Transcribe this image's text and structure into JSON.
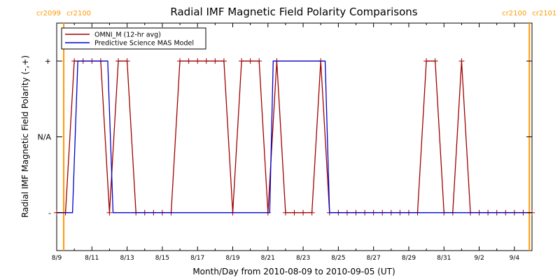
{
  "chart_data": {
    "type": "line",
    "title": "Radial IMF Magnetic Field Polarity Comparisons",
    "xlabel": "Month/Day from 2010-08-09 to 2010-09-05 (UT)",
    "ylabel": "Radial IMF Magnetic Field Polarity (-,+)",
    "x_unit": "days from 2010-08-09",
    "xlim": [
      0,
      27
    ],
    "ylim": [
      -1.5,
      1.5
    ],
    "x_ticks": [
      {
        "x": 0,
        "label": "8/9"
      },
      {
        "x": 2,
        "label": "8/11"
      },
      {
        "x": 4,
        "label": "8/13"
      },
      {
        "x": 6,
        "label": "8/15"
      },
      {
        "x": 8,
        "label": "8/17"
      },
      {
        "x": 10,
        "label": "8/19"
      },
      {
        "x": 12,
        "label": "8/21"
      },
      {
        "x": 14,
        "label": "8/23"
      },
      {
        "x": 16,
        "label": "8/25"
      },
      {
        "x": 18,
        "label": "8/27"
      },
      {
        "x": 20,
        "label": "8/29"
      },
      {
        "x": 22,
        "label": "8/31"
      },
      {
        "x": 24,
        "label": "9/2"
      },
      {
        "x": 26,
        "label": "9/4"
      }
    ],
    "y_ticks": [
      {
        "y": 1,
        "label": "+"
      },
      {
        "y": 0,
        "label": "N/A"
      },
      {
        "y": -1,
        "label": "-"
      }
    ],
    "carrington_markers": [
      {
        "x": 0.4,
        "label_left": "cr2099",
        "label_right": "cr2100",
        "color": "#ff9900"
      },
      {
        "x": 26.85,
        "label_left": "cr2100",
        "label_right": "cr2101",
        "color": "#ff9900"
      }
    ],
    "legend": "top-left",
    "series": [
      {
        "name": "OMNI_M (12-hr avg)",
        "color": "#a00000",
        "markers": "plus",
        "points": [
          [
            0,
            -1
          ],
          [
            0.5,
            -1
          ],
          [
            1,
            1
          ],
          [
            1.5,
            1
          ],
          [
            2,
            1
          ],
          [
            2.5,
            1
          ],
          [
            3,
            -1
          ],
          [
            3.5,
            1
          ],
          [
            4,
            1
          ],
          [
            4.5,
            -1
          ],
          [
            5,
            -1
          ],
          [
            5.5,
            -1
          ],
          [
            6,
            -1
          ],
          [
            6.5,
            -1
          ],
          [
            7,
            1
          ],
          [
            7.5,
            1
          ],
          [
            8,
            1
          ],
          [
            8.5,
            1
          ],
          [
            9,
            1
          ],
          [
            9.5,
            1
          ],
          [
            10,
            -1
          ],
          [
            10.5,
            1
          ],
          [
            11,
            1
          ],
          [
            11.5,
            1
          ],
          [
            12,
            -1
          ],
          [
            12.5,
            1
          ],
          [
            13,
            -1
          ],
          [
            13.5,
            -1
          ],
          [
            14,
            -1
          ],
          [
            14.5,
            -1
          ],
          [
            15,
            1
          ],
          [
            15.5,
            -1
          ],
          [
            16,
            -1
          ],
          [
            16.5,
            -1
          ],
          [
            17,
            -1
          ],
          [
            17.5,
            -1
          ],
          [
            18,
            -1
          ],
          [
            18.5,
            -1
          ],
          [
            19,
            -1
          ],
          [
            19.5,
            -1
          ],
          [
            20,
            -1
          ],
          [
            20.5,
            -1
          ],
          [
            21,
            1
          ],
          [
            21.5,
            1
          ],
          [
            22,
            -1
          ],
          [
            22.5,
            -1
          ],
          [
            23,
            1
          ],
          [
            23.5,
            -1
          ],
          [
            24,
            -1
          ],
          [
            24.5,
            -1
          ],
          [
            25,
            -1
          ],
          [
            25.5,
            -1
          ],
          [
            26,
            -1
          ],
          [
            26.5,
            -1
          ],
          [
            27,
            -1
          ]
        ]
      },
      {
        "name": "Predictive Science MAS Model",
        "color": "#0000cc",
        "markers": "none",
        "points": [
          [
            0,
            -1
          ],
          [
            0.9,
            -1
          ],
          [
            1.2,
            1
          ],
          [
            2.9,
            1
          ],
          [
            3.2,
            -1
          ],
          [
            12.1,
            -1
          ],
          [
            12.3,
            1
          ],
          [
            15.25,
            1
          ],
          [
            15.5,
            -1
          ],
          [
            27,
            -1
          ]
        ]
      }
    ]
  }
}
